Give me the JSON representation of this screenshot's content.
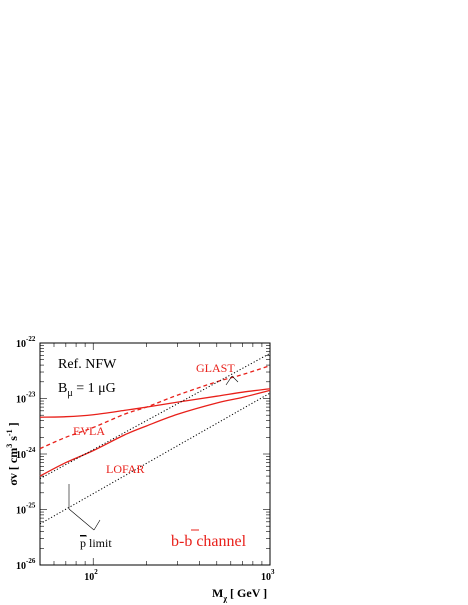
{
  "chart_data": {
    "type": "line",
    "x_scale": "log",
    "y_scale": "log",
    "xlim": [
      50,
      1000
    ],
    "ylim": [
      1e-26,
      1e-22
    ],
    "xlabel": "M",
    "xlabel_sub": "χ",
    "xlabel_unit": "[ GeV ]",
    "ylabel": "σv [ cm",
    "ylabel_exp1": "3",
    "ylabel_mid": " s",
    "ylabel_exp2": "-1",
    "ylabel_end": " ]",
    "x_ticks": [
      {
        "value": 100,
        "base": "10",
        "exp": "2"
      },
      {
        "value": 1000,
        "base": "10",
        "exp": "3"
      }
    ],
    "y_ticks": [
      {
        "value": 1e-26,
        "base": "10",
        "exp": "-26"
      },
      {
        "value": 1e-25,
        "base": "10",
        "exp": "-25"
      },
      {
        "value": 1e-24,
        "base": "10",
        "exp": "-24"
      },
      {
        "value": 1e-23,
        "base": "10",
        "exp": "-23"
      },
      {
        "value": 1e-22,
        "base": "10",
        "exp": "-22"
      }
    ],
    "series": [
      {
        "name": "EVLA",
        "color": "#e8201a",
        "style": "solid",
        "x": [
          50,
          70,
          100,
          150,
          200,
          300,
          500,
          700,
          1000
        ],
        "y": [
          4.6e-24,
          4.7e-24,
          5.1e-24,
          6.1e-24,
          7e-24,
          8.6e-24,
          1.1e-23,
          1.3e-23,
          1.5e-23
        ]
      },
      {
        "name": "LOFAR",
        "color": "#e8201a",
        "style": "solid",
        "x": [
          50,
          70,
          100,
          150,
          200,
          300,
          500,
          700,
          1000
        ],
        "y": [
          4e-25,
          7e-25,
          1.15e-24,
          2.2e-24,
          3.2e-24,
          5.2e-24,
          8.3e-24,
          1.05e-23,
          1.4e-23
        ]
      },
      {
        "name": "GLAST",
        "color": "#e8201a",
        "style": "dashed",
        "x": [
          50,
          70,
          100,
          150,
          200,
          300,
          500,
          700,
          1000
        ],
        "y": [
          1.25e-24,
          2e-24,
          3e-24,
          5.2e-24,
          7e-24,
          1.15e-23,
          2e-23,
          2.7e-23,
          3.9e-23
        ]
      },
      {
        "name": "p limit upper",
        "color": "#000000",
        "style": "dotted",
        "x": [
          50,
          1000
        ],
        "y": [
          3.6e-25,
          6.5e-23
        ]
      },
      {
        "name": "p limit lower",
        "color": "#000000",
        "style": "dotted",
        "x": [
          50,
          1000
        ],
        "y": [
          5.5e-26,
          1.25e-23
        ]
      }
    ],
    "annotations": {
      "ref_label": "Ref. NFW",
      "b_label": "B",
      "b_sub": "μ",
      "b_value": " = 1 μG",
      "glast": "GLAST",
      "evla": "EVLA",
      "lofar": "LOFAR",
      "plimit_p": "p",
      "plimit_text": " limit",
      "channel_b1": "b",
      "channel_dash": "-",
      "channel_b2": "b",
      "channel_text": " channel"
    }
  }
}
